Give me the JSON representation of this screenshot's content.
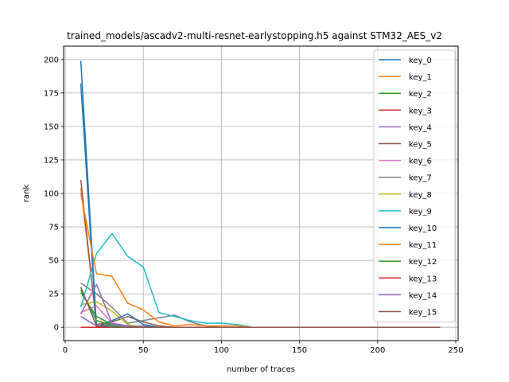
{
  "chart_data": {
    "type": "line",
    "title": "trained_models/ascadv2-multi-resnet-earlystopping.h5 against STM32_AES_v2",
    "xlabel": "number of traces",
    "ylabel": "rank",
    "xlim": [
      -1,
      251.5
    ],
    "ylim": [
      -10,
      210
    ],
    "xticks": [
      0,
      50,
      100,
      150,
      200,
      250
    ],
    "yticks": [
      0,
      25,
      50,
      75,
      100,
      125,
      150,
      175,
      200
    ],
    "grid": true,
    "legend_position": "upper right",
    "x": [
      10,
      20,
      30,
      40,
      50,
      60,
      70,
      80,
      90,
      100,
      110,
      120,
      130,
      140,
      150,
      160,
      170,
      180,
      190,
      200,
      210,
      220,
      230,
      240
    ],
    "series": [
      {
        "name": "key_0",
        "color": "#1f77b4",
        "values": [
          199,
          1,
          1,
          0,
          0,
          0,
          0,
          0,
          0,
          0,
          0,
          0,
          0,
          0,
          0,
          0,
          0,
          0,
          0,
          0,
          0,
          0,
          0,
          0
        ]
      },
      {
        "name": "key_1",
        "color": "#ff7f0e",
        "values": [
          104,
          5,
          2,
          1,
          0,
          0,
          0,
          0,
          0,
          0,
          0,
          0,
          0,
          0,
          0,
          0,
          0,
          0,
          0,
          0,
          0,
          0,
          0,
          0
        ]
      },
      {
        "name": "key_2",
        "color": "#2ca02c",
        "values": [
          26,
          8,
          2,
          1,
          0,
          0,
          0,
          0,
          0,
          0,
          0,
          0,
          0,
          0,
          0,
          0,
          0,
          0,
          0,
          0,
          0,
          0,
          0,
          0
        ]
      },
      {
        "name": "key_3",
        "color": "#d62728",
        "values": [
          0,
          0,
          0,
          0,
          0,
          0,
          0,
          0,
          0,
          0,
          0,
          0,
          0,
          0,
          0,
          0,
          0,
          0,
          0,
          0,
          0,
          0,
          0,
          0
        ]
      },
      {
        "name": "key_4",
        "color": "#9467bd",
        "values": [
          8,
          1,
          2,
          1,
          1,
          0,
          0,
          0,
          0,
          0,
          0,
          0,
          0,
          0,
          0,
          0,
          0,
          0,
          0,
          0,
          0,
          0,
          0,
          0
        ]
      },
      {
        "name": "key_5",
        "color": "#8c564b",
        "values": [
          110,
          2,
          4,
          8,
          4,
          1,
          0,
          0,
          0,
          0,
          0,
          0,
          0,
          0,
          0,
          0,
          0,
          0,
          0,
          0,
          0,
          0,
          0,
          0
        ]
      },
      {
        "name": "key_6",
        "color": "#e377c2",
        "values": [
          11,
          16,
          3,
          1,
          0,
          0,
          0,
          0,
          0,
          0,
          0,
          0,
          0,
          0,
          0,
          0,
          0,
          0,
          0,
          0,
          0,
          0,
          0,
          0
        ]
      },
      {
        "name": "key_7",
        "color": "#7f7f7f",
        "values": [
          33,
          25,
          15,
          3,
          5,
          7,
          9,
          4,
          1,
          0,
          0,
          0,
          0,
          0,
          0,
          0,
          0,
          0,
          0,
          0,
          0,
          0,
          0,
          0
        ]
      },
      {
        "name": "key_8",
        "color": "#bcbd22",
        "values": [
          17,
          19,
          12,
          2,
          0,
          0,
          0,
          0,
          0,
          0,
          0,
          0,
          0,
          0,
          0,
          0,
          0,
          0,
          0,
          0,
          0,
          0,
          0,
          0
        ]
      },
      {
        "name": "key_9",
        "color": "#17becf",
        "values": [
          15,
          55,
          70,
          53,
          45,
          11,
          8,
          5,
          3,
          3,
          2,
          0,
          0,
          0,
          0,
          0,
          0,
          0,
          0,
          0,
          0,
          0,
          0,
          0
        ]
      },
      {
        "name": "key_10",
        "color": "#1f77b4",
        "values": [
          182,
          0,
          5,
          10,
          2,
          0,
          0,
          0,
          0,
          0,
          0,
          0,
          0,
          0,
          0,
          0,
          0,
          0,
          0,
          0,
          0,
          0,
          0,
          0
        ]
      },
      {
        "name": "key_11",
        "color": "#ff7f0e",
        "values": [
          100,
          40,
          38,
          18,
          13,
          4,
          1,
          2,
          1,
          1,
          1,
          0,
          0,
          0,
          0,
          0,
          0,
          0,
          0,
          0,
          0,
          0,
          0,
          0
        ]
      },
      {
        "name": "key_12",
        "color": "#2ca02c",
        "values": [
          28,
          5,
          1,
          0,
          0,
          0,
          0,
          0,
          0,
          0,
          0,
          0,
          0,
          0,
          0,
          0,
          0,
          0,
          0,
          0,
          0,
          0,
          0,
          0
        ]
      },
      {
        "name": "key_13",
        "color": "#d62728",
        "values": [
          0,
          0,
          0,
          0,
          0,
          0,
          0,
          0,
          0,
          0,
          0,
          0,
          0,
          0,
          0,
          0,
          0,
          0,
          0,
          0,
          0,
          0,
          0,
          0
        ]
      },
      {
        "name": "key_14",
        "color": "#9467bd",
        "values": [
          10,
          32,
          3,
          1,
          0,
          0,
          0,
          0,
          0,
          0,
          0,
          0,
          0,
          0,
          0,
          0,
          0,
          0,
          0,
          0,
          0,
          0,
          0,
          0
        ]
      },
      {
        "name": "key_15",
        "color": "#8c564b",
        "values": [
          30,
          1,
          0,
          0,
          0,
          0,
          0,
          0,
          0,
          0,
          0,
          0,
          0,
          0,
          0,
          0,
          0,
          0,
          0,
          0,
          0,
          0,
          0,
          0
        ]
      }
    ]
  }
}
